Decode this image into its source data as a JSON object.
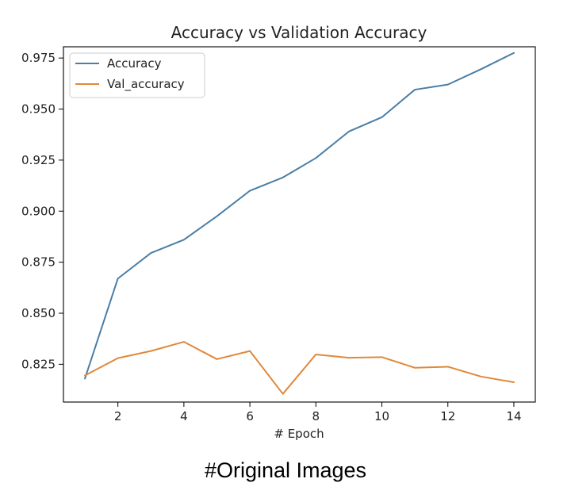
{
  "chart_data": {
    "type": "line",
    "title": "Accuracy vs Validation Accuracy",
    "xlabel": "# Epoch",
    "ylabel": "",
    "xlim": [
      0.35,
      14.65
    ],
    "ylim": [
      0.8065,
      0.9805
    ],
    "x": [
      1,
      2,
      3,
      4,
      5,
      6,
      7,
      8,
      9,
      10,
      11,
      12,
      13,
      14
    ],
    "xticks": [
      2,
      4,
      6,
      8,
      10,
      12,
      14
    ],
    "yticks": [
      0.825,
      0.85,
      0.875,
      0.9,
      0.925,
      0.95,
      0.975
    ],
    "ytick_labels": [
      "0.825",
      "0.850",
      "0.875",
      "0.900",
      "0.925",
      "0.950",
      "0.975"
    ],
    "grid": false,
    "legend_position": "upper-left",
    "series": [
      {
        "name": "Accuracy",
        "color": "#4a7ea6",
        "values": [
          0.818,
          0.867,
          0.8795,
          0.886,
          0.8975,
          0.91,
          0.9165,
          0.926,
          0.939,
          0.946,
          0.9595,
          0.962,
          0.9695,
          0.9775
        ]
      },
      {
        "name": "Val_accuracy",
        "color": "#e0883a",
        "values": [
          0.8195,
          0.828,
          0.8315,
          0.836,
          0.8275,
          0.8315,
          0.8105,
          0.8298,
          0.8282,
          0.8285,
          0.8233,
          0.8238,
          0.819,
          0.8162
        ]
      }
    ]
  },
  "caption": "#Original Images"
}
